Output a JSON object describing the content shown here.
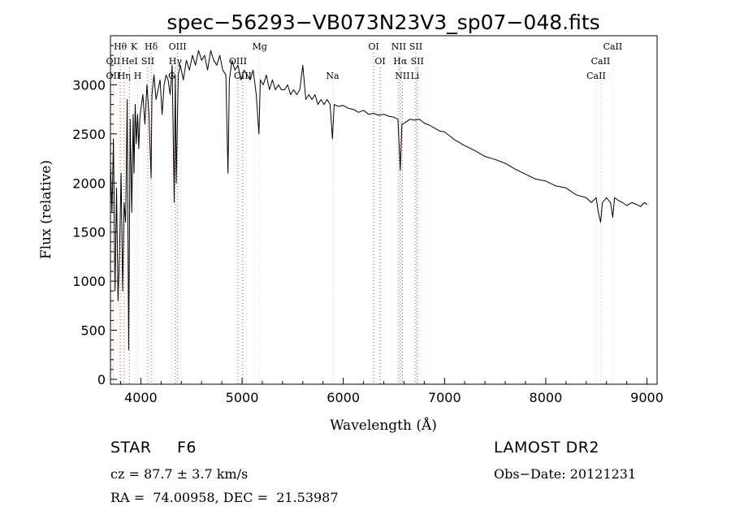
{
  "chart_data": {
    "type": "line",
    "title": "spec−56293−VB073N23V3_sp07−048.fits",
    "xlabel": "Wavelength (Å)",
    "ylabel": "Flux (relative)",
    "xlim": [
      3700,
      9100
    ],
    "ylim": [
      -50,
      3500
    ],
    "x_ticks": [
      4000,
      5000,
      6000,
      7000,
      8000,
      9000
    ],
    "y_ticks": [
      0,
      500,
      1000,
      1500,
      2000,
      2500,
      3000
    ],
    "series": [
      {
        "line_color": "#000000",
        "x": [
          3700,
          3715,
          3730,
          3745,
          3760,
          3775,
          3790,
          3805,
          3820,
          3835,
          3850,
          3865,
          3880,
          3895,
          3910,
          3925,
          3933,
          3945,
          3955,
          3968,
          3980,
          3990,
          4000,
          4020,
          4040,
          4060,
          4080,
          4101,
          4110,
          4130,
          4150,
          4170,
          4190,
          4210,
          4230,
          4250,
          4270,
          4290,
          4310,
          4330,
          4340,
          4350,
          4370,
          4390,
          4420,
          4450,
          4480,
          4510,
          4540,
          4570,
          4600,
          4630,
          4660,
          4690,
          4720,
          4750,
          4780,
          4810,
          4840,
          4861,
          4875,
          4900,
          4930,
          4960,
          4990,
          5020,
          5050,
          5080,
          5110,
          5140,
          5167,
          5180,
          5210,
          5240,
          5270,
          5300,
          5330,
          5360,
          5390,
          5420,
          5450,
          5480,
          5510,
          5540,
          5570,
          5600,
          5630,
          5660,
          5690,
          5720,
          5750,
          5780,
          5810,
          5840,
          5870,
          5893,
          5910,
          5950,
          6000,
          6050,
          6100,
          6150,
          6200,
          6250,
          6300,
          6350,
          6400,
          6450,
          6500,
          6540,
          6563,
          6580,
          6620,
          6660,
          6700,
          6750,
          6800,
          6850,
          6900,
          6950,
          7000,
          7100,
          7200,
          7300,
          7400,
          7500,
          7600,
          7700,
          7800,
          7900,
          8000,
          8100,
          8200,
          8300,
          8400,
          8450,
          8498,
          8520,
          8542,
          8560,
          8600,
          8640,
          8662,
          8680,
          8720,
          8760,
          8800,
          8850,
          8900,
          8940,
          8960,
          8980,
          9000
        ],
        "y": [
          2200,
          1700,
          2450,
          900,
          1950,
          800,
          1300,
          2100,
          900,
          1800,
          1600,
          2850,
          300,
          2650,
          1700,
          2700,
          2100,
          2800,
          2400,
          2700,
          2350,
          2650,
          2750,
          2900,
          2600,
          3000,
          2700,
          2050,
          2900,
          3100,
          2850,
          2950,
          3050,
          2700,
          3000,
          3100,
          3050,
          2900,
          3200,
          1800,
          3100,
          2000,
          3100,
          3200,
          3050,
          3250,
          3150,
          3300,
          3200,
          3350,
          3250,
          3300,
          3150,
          3350,
          3250,
          3200,
          3300,
          3150,
          3100,
          2100,
          3050,
          3250,
          3150,
          3200,
          3050,
          3150,
          3100,
          3050,
          3150,
          2900,
          2500,
          3050,
          3000,
          3100,
          2950,
          3050,
          2950,
          3000,
          2950,
          2950,
          3000,
          2900,
          2950,
          2900,
          2950,
          3200,
          2850,
          2900,
          2850,
          2900,
          2800,
          2850,
          2800,
          2850,
          2800,
          2450,
          2800,
          2780,
          2790,
          2760,
          2750,
          2720,
          2740,
          2700,
          2710,
          2690,
          2700,
          2680,
          2670,
          2650,
          2130,
          2600,
          2620,
          2650,
          2640,
          2650,
          2610,
          2590,
          2560,
          2530,
          2520,
          2440,
          2380,
          2330,
          2270,
          2240,
          2200,
          2140,
          2090,
          2040,
          2020,
          1970,
          1950,
          1880,
          1850,
          1800,
          1850,
          1700,
          1600,
          1800,
          1850,
          1800,
          1650,
          1850,
          1820,
          1800,
          1770,
          1800,
          1780,
          1760,
          1790,
          1800,
          1780
        ]
      }
    ],
    "line_markers": [
      {
        "label": "Hθ",
        "x": 3798,
        "color": "#d94040",
        "lbl_row": 0
      },
      {
        "label": "OII",
        "x": 3727,
        "color": "#c8c8c8",
        "lbl_row": 1
      },
      {
        "label": "OII",
        "x": 3727,
        "color": "#c8c8c8",
        "lbl_row": 2
      },
      {
        "label": "K",
        "x": 3934,
        "color": "#c8c8c8",
        "lbl_row": 0
      },
      {
        "label": "Hη",
        "x": 3835,
        "color": "#d94040",
        "lbl_row": 2
      },
      {
        "label": "HeI",
        "x": 3889,
        "color": "#d94040",
        "lbl_row": 1
      },
      {
        "label": "H",
        "x": 3969,
        "color": "#c8c8c8",
        "lbl_row": 2
      },
      {
        "label": "SII",
        "x": 4069,
        "color": "#d94040",
        "lbl_row": 1
      },
      {
        "label": "Hδ",
        "x": 4102,
        "color": "#d94040",
        "lbl_row": 0
      },
      {
        "label": "OIII",
        "x": 4363,
        "color": "#d94040",
        "lbl_row": 0
      },
      {
        "label": "Hγ",
        "x": 4341,
        "color": "#d94040",
        "lbl_row": 1
      },
      {
        "label": "G",
        "x": 4305,
        "color": "#c8c8c8",
        "lbl_row": 2
      },
      {
        "label": "OIII",
        "x": 4959,
        "color": "#d94040",
        "lbl_row": 1
      },
      {
        "label": "OIII",
        "x": 5007,
        "color": "#d94040",
        "lbl_row": 2
      },
      {
        "label": "Mg",
        "x": 5175,
        "color": "#c8c8c8",
        "lbl_row": 0
      },
      {
        "label": "Na",
        "x": 5894,
        "color": "#c8c8c8",
        "lbl_row": 2
      },
      {
        "label": "OI",
        "x": 6300,
        "color": "#d94040",
        "lbl_row": 0
      },
      {
        "label": "OI",
        "x": 6364,
        "color": "#d94040",
        "lbl_row": 1
      },
      {
        "label": "NII",
        "x": 6548,
        "color": "#d94040",
        "lbl_row": 0
      },
      {
        "label": "SII",
        "x": 6717,
        "color": "#d94040",
        "lbl_row": 0
      },
      {
        "label": "Hα",
        "x": 6563,
        "color": "#d94040",
        "lbl_row": 1
      },
      {
        "label": "SII",
        "x": 6731,
        "color": "#d94040",
        "lbl_row": 1
      },
      {
        "label": "NII",
        "x": 6584,
        "color": "#d94040",
        "lbl_row": 2
      },
      {
        "label": "Li",
        "x": 6708,
        "color": "#c8c8c8",
        "lbl_row": 2
      },
      {
        "label": "CaII",
        "x": 8662,
        "color": "#c8c8c8",
        "lbl_row": 0
      },
      {
        "label": "CaII",
        "x": 8542,
        "color": "#c8c8c8",
        "lbl_row": 1
      },
      {
        "label": "CaII",
        "x": 8498,
        "color": "#c8c8c8",
        "lbl_row": 2
      }
    ]
  },
  "info": {
    "object_class": "STAR",
    "subclass": "F6",
    "survey": "LAMOST DR2",
    "redshift_line": "cz = 87.7 ± 3.7 km/s",
    "obs_date_line": "Obs−Date: 20121231",
    "coords_line": "RA =  74.00958, DEC =  21.53987"
  }
}
